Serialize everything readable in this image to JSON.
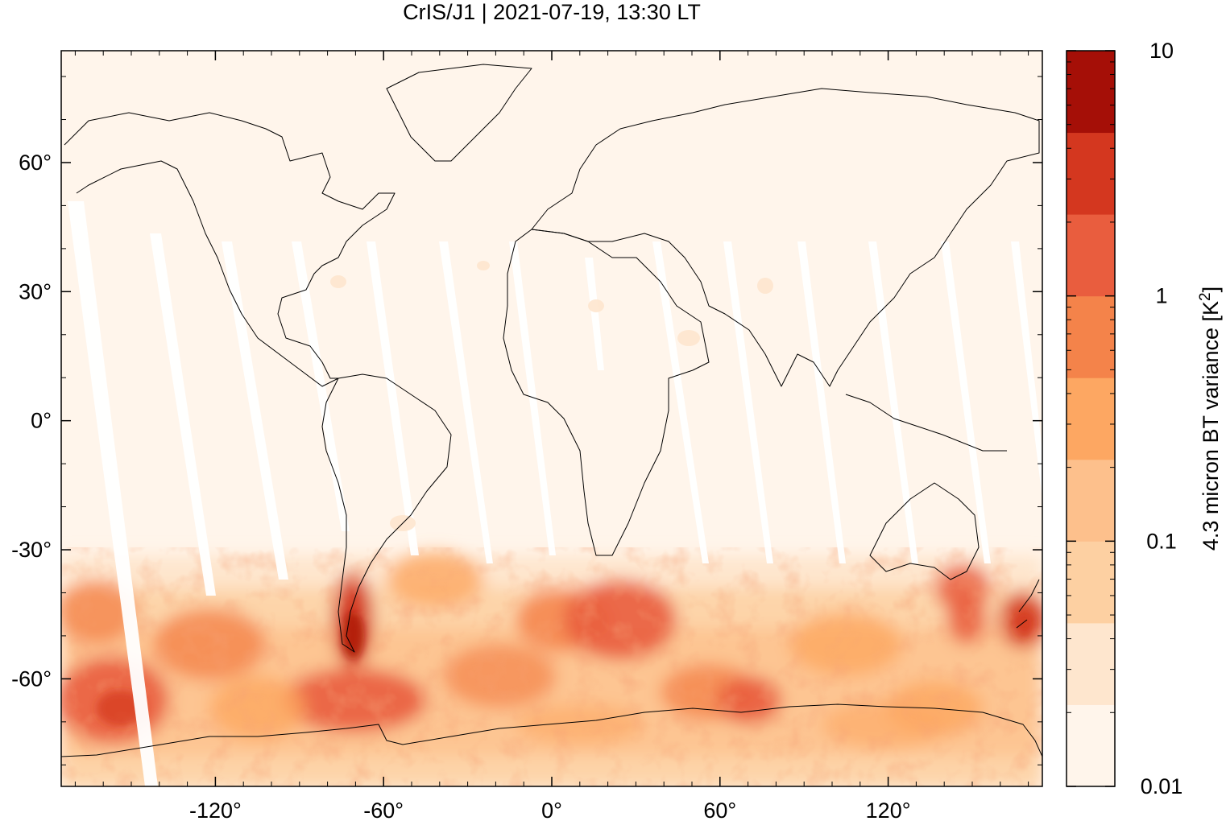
{
  "chart_data": {
    "type": "heatmap",
    "title": "CrIS/J1 | 2021-07-19, 13:30 LT",
    "x_ticks": [
      {
        "value": -120,
        "label": "-120°"
      },
      {
        "value": -60,
        "label": "-60°"
      },
      {
        "value": 0,
        "label": "0°"
      },
      {
        "value": 60,
        "label": "60°"
      },
      {
        "value": 120,
        "label": "120°"
      }
    ],
    "y_ticks": [
      {
        "value": 60,
        "label": "60°"
      },
      {
        "value": 30,
        "label": "30°"
      },
      {
        "value": 0,
        "label": "0°"
      },
      {
        "value": -30,
        "label": "-30°"
      },
      {
        "value": -60,
        "label": "-60°"
      }
    ],
    "xlim": [
      -175,
      175
    ],
    "ylim": [
      -85,
      86
    ],
    "colorbar": {
      "label": "4.3 micron BT variance [K²]",
      "scale": "log",
      "range": [
        0.01,
        10
      ],
      "ticks": [
        {
          "value": 10,
          "label": "10"
        },
        {
          "value": 1,
          "label": "1"
        },
        {
          "value": 0.1,
          "label": "0.1"
        },
        {
          "value": 0.01,
          "label": "0.01"
        }
      ],
      "levels": 9,
      "colors": [
        "#fff5eb",
        "#fee6ce",
        "#fdd0a2",
        "#fdc08c",
        "#fda762",
        "#f4834a",
        "#e95d3e",
        "#d4371f",
        "#a50f07"
      ]
    },
    "features": {
      "swath_gaps": "white diagonal stripes between orbit swaths, mostly in tropics and Pacific",
      "high_variance_regions": [
        "Southern Ocean 40°S–70°S",
        "southern Andes / Patagonia",
        "south of Africa",
        "Tasmania / New Zealand"
      ],
      "coastlines": true
    }
  }
}
